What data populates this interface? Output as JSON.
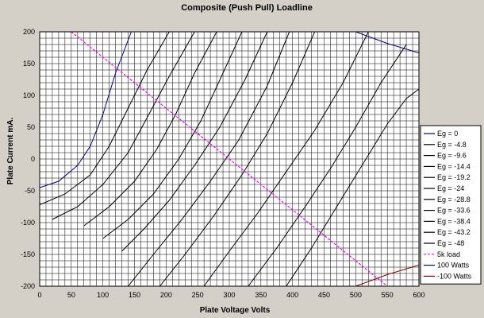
{
  "chart_data": {
    "type": "line",
    "title": "Composite (Push Pull) Loadline",
    "xlabel": "Plate Voltage  Volts",
    "ylabel": "Plate Current  mA.",
    "xlim": [
      0,
      600
    ],
    "ylim": [
      -200,
      200
    ],
    "x_ticks": [
      0,
      50,
      100,
      150,
      200,
      250,
      300,
      350,
      400,
      450,
      500,
      550,
      600
    ],
    "y_ticks": [
      -200,
      -150,
      -100,
      -50,
      0,
      50,
      100,
      150,
      200
    ],
    "grid": true,
    "legend_position": "right",
    "colors": {
      "plot_background": "#ffffff",
      "chart_background": "#d4d0c8",
      "grid": "#000000",
      "eg0": "#000080",
      "eg": "#000000",
      "load": "#ff00ff",
      "power_plus": "#000080",
      "power_minus": "#800000"
    },
    "series": [
      {
        "name": "Eg = 0",
        "color": "#000080",
        "x": [
          0,
          30,
          60,
          80,
          100,
          120,
          145
        ],
        "y": [
          -45,
          -35,
          -10,
          20,
          70,
          135,
          200
        ]
      },
      {
        "name": "Eg = -4.8",
        "color": "#000000",
        "x": [
          0,
          40,
          80,
          110,
          140,
          170,
          205
        ],
        "y": [
          -72,
          -55,
          -25,
          20,
          80,
          140,
          200
        ]
      },
      {
        "name": "Eg = -9.6",
        "color": "#000000",
        "x": [
          20,
          60,
          100,
          140,
          170,
          205,
          245
        ],
        "y": [
          -95,
          -75,
          -40,
          10,
          65,
          130,
          200
        ]
      },
      {
        "name": "Eg = -14.4",
        "color": "#000000",
        "x": [
          70,
          110,
          150,
          185,
          215,
          245,
          280
        ],
        "y": [
          -105,
          -75,
          -35,
          15,
          70,
          135,
          200
        ]
      },
      {
        "name": "Eg = -19.2",
        "color": "#000000",
        "x": [
          100,
          140,
          180,
          220,
          255,
          290,
          320
        ],
        "y": [
          -125,
          -95,
          -55,
          0,
          60,
          135,
          200
        ]
      },
      {
        "name": "Eg = -24",
        "color": "#000000",
        "x": [
          130,
          165,
          205,
          245,
          285,
          325,
          360
        ],
        "y": [
          -145,
          -110,
          -65,
          -10,
          50,
          125,
          200
        ]
      },
      {
        "name": "Eg = -28.8",
        "color": "#000000",
        "x": [
          140,
          180,
          225,
          270,
          315,
          360,
          395
        ],
        "y": [
          -200,
          -150,
          -95,
          -35,
          30,
          115,
          200
        ]
      },
      {
        "name": "Eg = -33.6",
        "color": "#000000",
        "x": [
          190,
          230,
          275,
          320,
          360,
          400,
          435
        ],
        "y": [
          -200,
          -150,
          -90,
          -25,
          40,
          120,
          200
        ]
      },
      {
        "name": "Eg = -38.4",
        "color": "#000000",
        "x": [
          260,
          300,
          345,
          390,
          435,
          480,
          520
        ],
        "y": [
          -200,
          -145,
          -85,
          -20,
          45,
          120,
          200
        ]
      },
      {
        "name": "Eg = -43.2",
        "color": "#000000",
        "x": [
          330,
          375,
          420,
          460,
          500,
          540,
          580
        ],
        "y": [
          -200,
          -140,
          -75,
          -15,
          50,
          120,
          180
        ]
      },
      {
        "name": "Eg = -48",
        "color": "#000000",
        "x": [
          390,
          430,
          470,
          510,
          550,
          580,
          600
        ],
        "y": [
          -200,
          -140,
          -75,
          -10,
          55,
          95,
          110
        ]
      },
      {
        "name": "5k load",
        "color": "#ff00ff",
        "x": [
          50,
          100,
          150,
          200,
          250,
          300,
          350,
          400,
          450,
          500,
          550
        ],
        "y": [
          200,
          160,
          120,
          80,
          40,
          0,
          -40,
          -80,
          -120,
          -160,
          -200
        ]
      },
      {
        "name": "100 Watts",
        "color": "#000080",
        "x": [
          500,
          550,
          600
        ],
        "y": [
          200,
          181.8,
          166.7
        ]
      },
      {
        "name": "-100 Watts",
        "color": "#800000",
        "x": [
          500,
          550,
          600
        ],
        "y": [
          -200,
          -181.8,
          -166.7
        ]
      }
    ]
  }
}
